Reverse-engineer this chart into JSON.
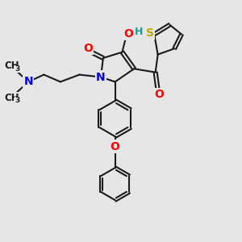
{
  "background_color": "#e6e6e6",
  "bond_color": "#1a1a1a",
  "bond_width": 1.5,
  "atom_colors": {
    "N": "#0000ee",
    "O": "#ff0000",
    "S": "#bbaa00",
    "H": "#229999",
    "C": "#1a1a1a"
  },
  "font_size_atom": 10,
  "font_size_methyl": 8.5,
  "font_size_sub": 6.5
}
